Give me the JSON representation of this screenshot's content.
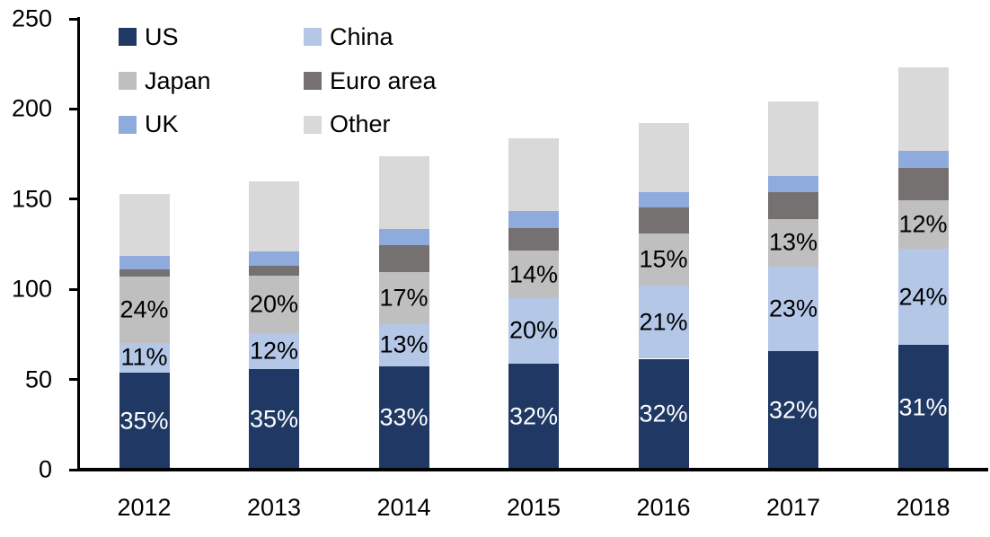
{
  "chart_data": {
    "type": "bar",
    "stacked": true,
    "title": "",
    "xlabel": "",
    "ylabel": "",
    "categories": [
      "2012",
      "2013",
      "2014",
      "2015",
      "2016",
      "2017",
      "2018"
    ],
    "series": [
      {
        "name": "US",
        "color": "#1f3864",
        "values": [
          53.6,
          56.0,
          57.5,
          59.0,
          61.5,
          65.5,
          69.0
        ],
        "labels": [
          "35%",
          "35%",
          "33%",
          "32%",
          "32%",
          "32%",
          "31%"
        ],
        "label_color": "#ffffff"
      },
      {
        "name": "China",
        "color": "#b4c7e7",
        "values": [
          16.8,
          19.5,
          23.0,
          36.0,
          40.5,
          47.0,
          53.5
        ],
        "labels": [
          "11%",
          "12%",
          "13%",
          "20%",
          "21%",
          "23%",
          "24%"
        ],
        "label_color": "#000000"
      },
      {
        "name": "Japan",
        "color": "#bfbfbf",
        "values": [
          36.7,
          32.0,
          29.0,
          26.5,
          29.0,
          26.5,
          27.0
        ],
        "labels": [
          "24%",
          "20%",
          "17%",
          "14%",
          "15%",
          "13%",
          "12%"
        ],
        "label_color": "#000000"
      },
      {
        "name": "Euro area",
        "color": "#767171",
        "values": [
          4.0,
          5.5,
          15.0,
          12.5,
          14.5,
          15.0,
          18.0
        ],
        "labels": [
          "",
          "",
          "",
          "",
          "",
          "",
          ""
        ],
        "label_color": "#000000"
      },
      {
        "name": "UK",
        "color": "#8faadc",
        "values": [
          7.5,
          8.0,
          9.0,
          9.5,
          8.5,
          9.0,
          9.5
        ],
        "labels": [
          "",
          "",
          "",
          "",
          "",
          "",
          ""
        ],
        "label_color": "#000000"
      },
      {
        "name": "Other",
        "color": "#d9d9d9",
        "values": [
          34.4,
          39.0,
          40.5,
          40.5,
          38.0,
          41.0,
          46.0
        ],
        "labels": [
          "",
          "",
          "",
          "",
          "",
          "",
          ""
        ],
        "label_color": "#000000"
      }
    ],
    "totals": [
      153,
      160,
      174,
      184,
      192,
      204,
      223
    ],
    "ylim": [
      0,
      250
    ],
    "yticks": [
      0,
      50,
      100,
      150,
      200,
      250
    ],
    "grid": false,
    "legend_position": "top-left-inside",
    "legend_columns": 2,
    "axis_color": "#000000"
  }
}
